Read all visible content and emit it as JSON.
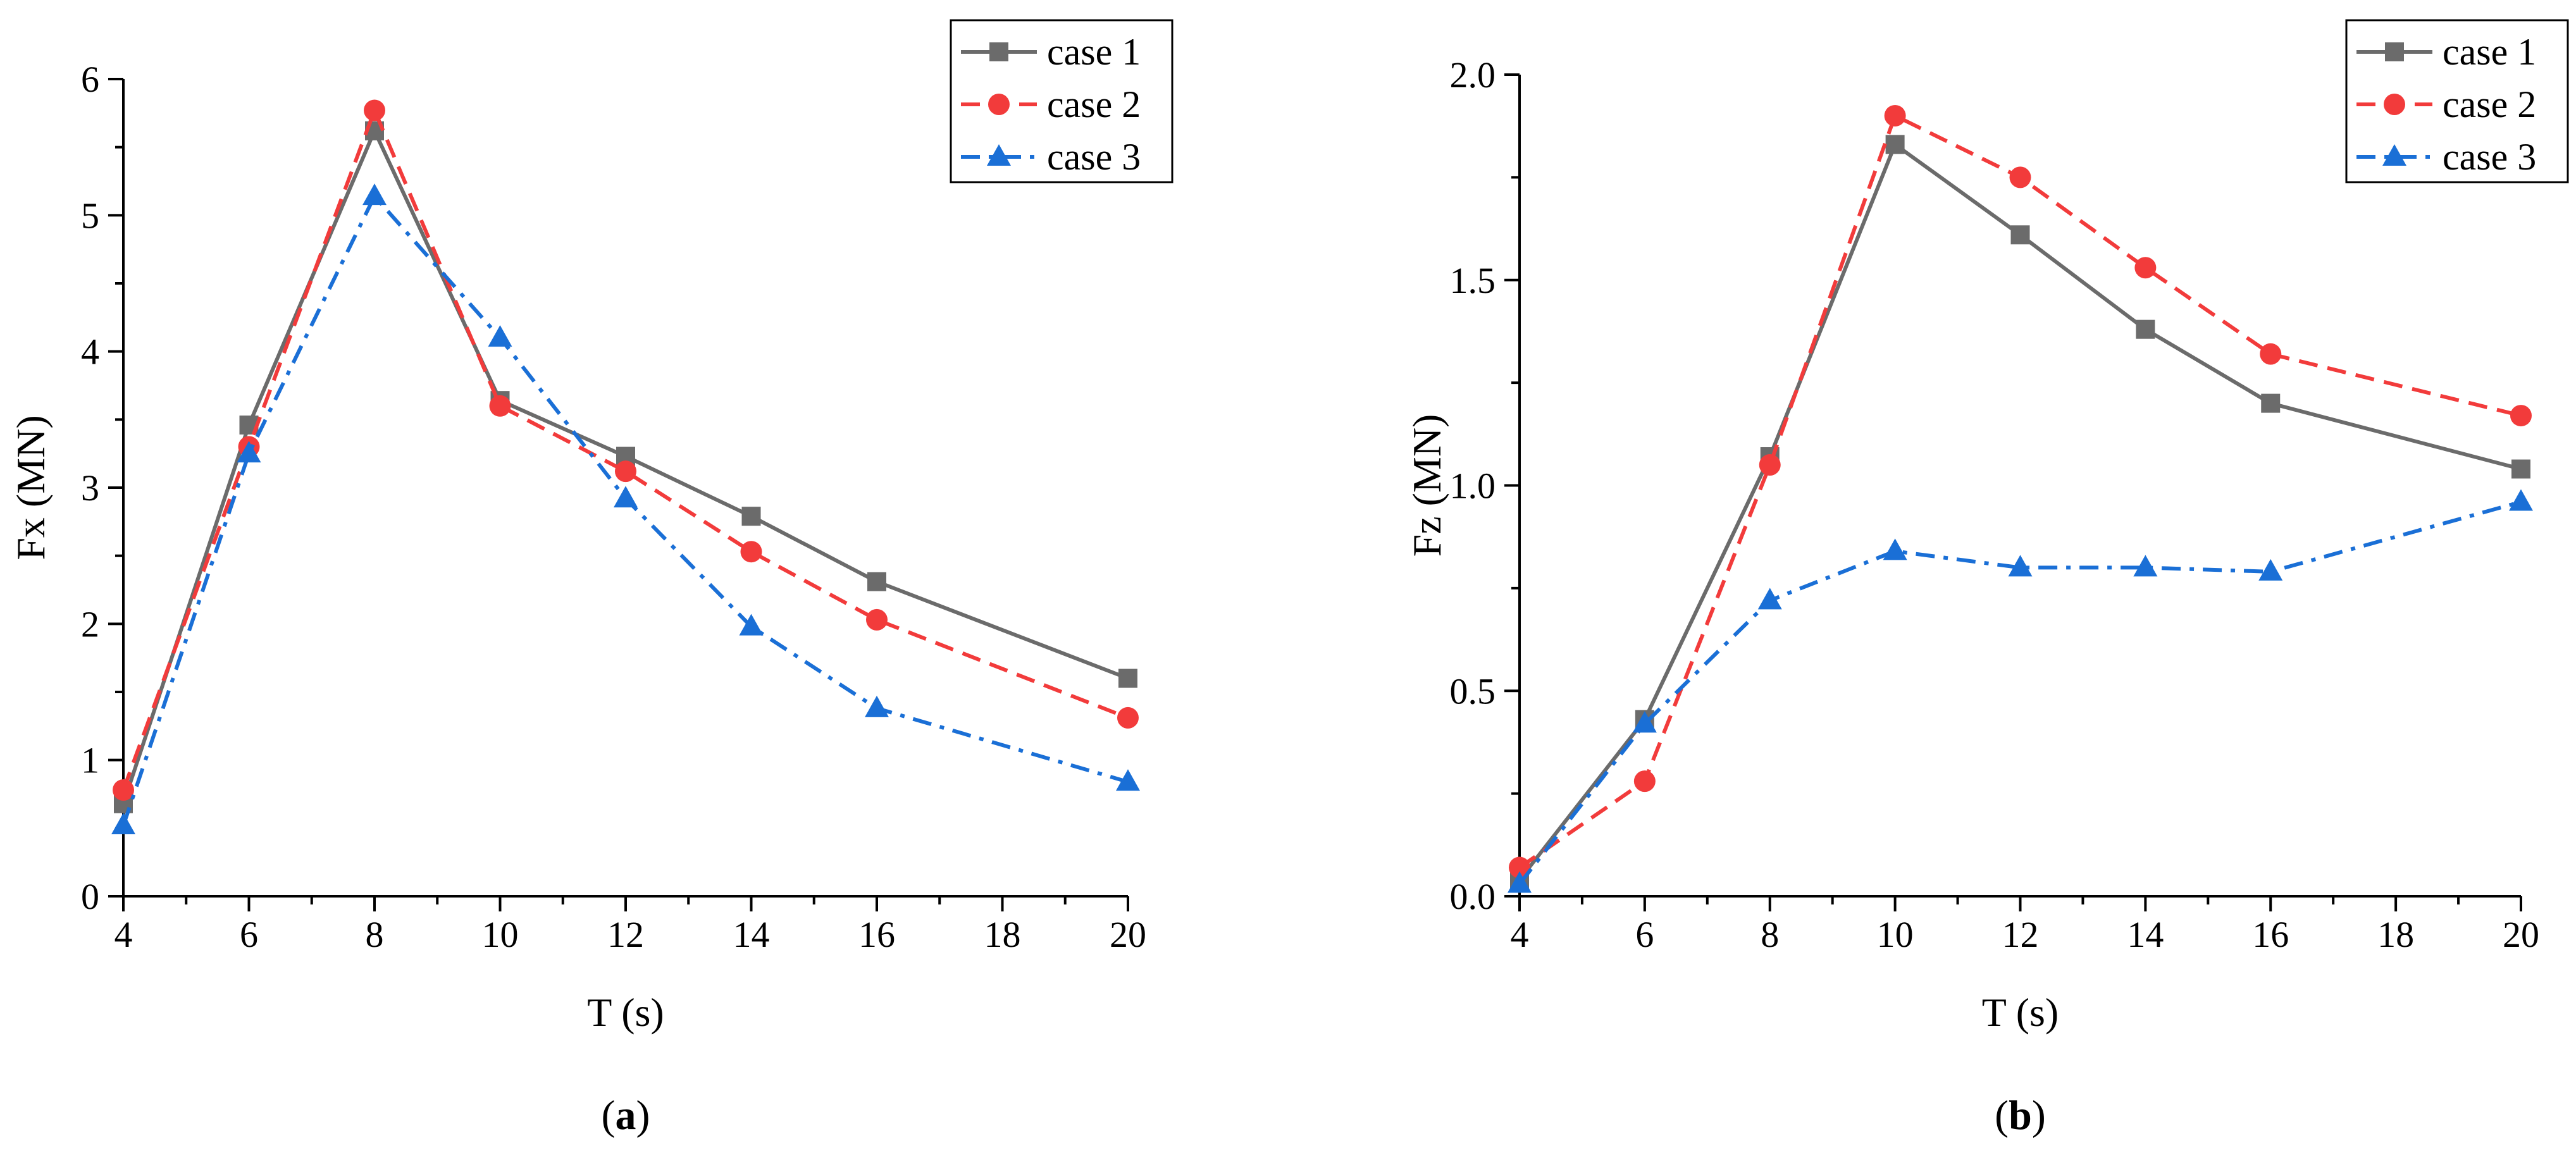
{
  "chart_data": [
    {
      "type": "line",
      "panel_label": "a",
      "title": "",
      "xlabel": "T (s)",
      "ylabel": "Fx (MN)",
      "x": [
        4,
        6,
        8,
        10,
        12,
        14,
        16,
        18,
        20
      ],
      "xlim": [
        4,
        20
      ],
      "ylim": [
        0,
        6
      ],
      "xticks": [
        4,
        6,
        8,
        10,
        12,
        14,
        16,
        18,
        20
      ],
      "yticks": [
        0,
        1,
        2,
        3,
        4,
        5,
        6
      ],
      "grid": false,
      "legend_position": "top-right",
      "series": [
        {
          "name": "case 1",
          "color": "#6b6b6b",
          "marker": "square",
          "line_style": "solid",
          "x": [
            4,
            6,
            8,
            10,
            12,
            14,
            16,
            20
          ],
          "values": [
            0.68,
            3.46,
            5.62,
            3.64,
            3.23,
            2.79,
            2.31,
            1.6
          ]
        },
        {
          "name": "case 2",
          "color": "#f23b3b",
          "marker": "circle",
          "line_style": "dash",
          "x": [
            4,
            6,
            8,
            10,
            12,
            14,
            16,
            20
          ],
          "values": [
            0.78,
            3.3,
            5.77,
            3.6,
            3.12,
            2.53,
            2.03,
            1.31
          ]
        },
        {
          "name": "case 3",
          "color": "#1a6fd6",
          "marker": "triangle",
          "line_style": "dash-dot",
          "x": [
            4,
            6,
            8,
            10,
            12,
            14,
            16,
            20
          ],
          "values": [
            0.52,
            3.25,
            5.14,
            4.1,
            2.92,
            1.98,
            1.38,
            0.84
          ]
        }
      ]
    },
    {
      "type": "line",
      "panel_label": "b",
      "title": "",
      "xlabel": "T (s)",
      "ylabel": "Fz (MN)",
      "x": [
        4,
        6,
        8,
        10,
        12,
        14,
        16,
        18,
        20
      ],
      "xlim": [
        4,
        20
      ],
      "ylim": [
        0,
        2.0
      ],
      "xticks": [
        4,
        6,
        8,
        10,
        12,
        14,
        16,
        18,
        20
      ],
      "yticks": [
        "0.0",
        "0.5",
        "1.0",
        "1.5",
        "2.0"
      ],
      "grid": false,
      "legend_position": "top-right",
      "series": [
        {
          "name": "case 1",
          "color": "#6b6b6b",
          "marker": "square",
          "line_style": "solid",
          "x": [
            4,
            6,
            8,
            10,
            12,
            14,
            16,
            20
          ],
          "values": [
            0.04,
            0.43,
            1.07,
            1.83,
            1.61,
            1.38,
            1.2,
            1.04
          ]
        },
        {
          "name": "case 2",
          "color": "#f23b3b",
          "marker": "circle",
          "line_style": "dash",
          "x": [
            4,
            6,
            8,
            10,
            12,
            14,
            16,
            20
          ],
          "values": [
            0.07,
            0.28,
            1.05,
            1.9,
            1.75,
            1.53,
            1.32,
            1.17
          ]
        },
        {
          "name": "case 3",
          "color": "#1a6fd6",
          "marker": "triangle",
          "line_style": "dash-dot",
          "x": [
            4,
            6,
            8,
            10,
            12,
            14,
            16,
            20
          ],
          "values": [
            0.03,
            0.42,
            0.72,
            0.84,
            0.8,
            0.8,
            0.79,
            0.96
          ]
        }
      ]
    }
  ]
}
